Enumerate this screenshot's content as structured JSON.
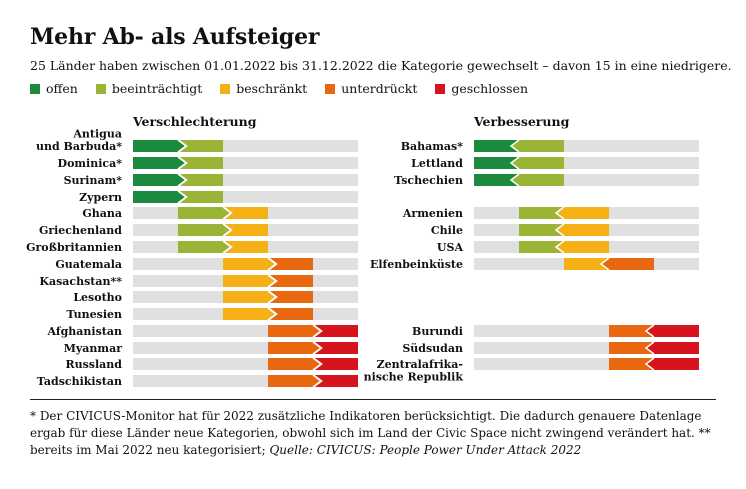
{
  "title": "Mehr Ab- als Aufsteiger",
  "subtitle": "25 Länder haben zwischen 01.01.2022 bis 31.12.2022 die Kategorie gewechselt – davon 15 in eine niedrigere.",
  "colors": {
    "offen": "#1b8a3c",
    "beeintraechtigt": "#9ab536",
    "beschraenkt": "#f5b015",
    "unterdrueckt": "#e8670f",
    "geschlossen": "#d7141e",
    "track": "#e0e0e0"
  },
  "legend": [
    {
      "label": "offen",
      "color": "#1b8a3c"
    },
    {
      "label": "beeinträchtigt",
      "color": "#9ab536"
    },
    {
      "label": "beschränkt",
      "color": "#f5b015"
    },
    {
      "label": "unterdrückt",
      "color": "#e8670f"
    },
    {
      "label": "geschlossen",
      "color": "#d7141e"
    }
  ],
  "chart_data": {
    "type": "table",
    "categories_scale": [
      "offen",
      "beeinträchtigt",
      "beschränkt",
      "unterdrückt",
      "geschlossen"
    ],
    "panels": [
      {
        "heading": "Verschlechterung",
        "direction": "worse",
        "rows": [
          {
            "country": "Antigua\nund Barbuda*",
            "from": "offen",
            "to": "beeinträchtigt"
          },
          {
            "country": "Dominica*",
            "from": "offen",
            "to": "beeinträchtigt"
          },
          {
            "country": "Surinam*",
            "from": "offen",
            "to": "beeinträchtigt"
          },
          {
            "country": "Zypern",
            "from": "offen",
            "to": "beeinträchtigt"
          },
          {
            "country": "Ghana",
            "from": "beeinträchtigt",
            "to": "beschränkt"
          },
          {
            "country": "Griechenland",
            "from": "beeinträchtigt",
            "to": "beschränkt"
          },
          {
            "country": "Großbritannien",
            "from": "beeinträchtigt",
            "to": "beschränkt"
          },
          {
            "country": "Guatemala",
            "from": "beschränkt",
            "to": "unterdrückt"
          },
          {
            "country": "Kasachstan**",
            "from": "beschränkt",
            "to": "unterdrückt"
          },
          {
            "country": "Lesotho",
            "from": "beschränkt",
            "to": "unterdrückt"
          },
          {
            "country": "Tunesien",
            "from": "beschränkt",
            "to": "unterdrückt"
          },
          {
            "country": "Afghanistan",
            "from": "unterdrückt",
            "to": "geschlossen"
          },
          {
            "country": "Myanmar",
            "from": "unterdrückt",
            "to": "geschlossen"
          },
          {
            "country": "Russland",
            "from": "unterdrückt",
            "to": "geschlossen"
          },
          {
            "country": "Tadschikistan",
            "from": "unterdrückt",
            "to": "geschlossen"
          }
        ]
      },
      {
        "heading": "Verbesserung",
        "direction": "better",
        "rows": [
          {
            "country": "Bahamas*",
            "from": "beeinträchtigt",
            "to": "offen"
          },
          {
            "country": "Lettland",
            "from": "beeinträchtigt",
            "to": "offen"
          },
          {
            "country": "Tschechien",
            "from": "beeinträchtigt",
            "to": "offen"
          },
          {
            "country": "Armenien",
            "from": "beschränkt",
            "to": "beeinträchtigt"
          },
          {
            "country": "Chile",
            "from": "beschränkt",
            "to": "beeinträchtigt"
          },
          {
            "country": "USA",
            "from": "beschränkt",
            "to": "beeinträchtigt"
          },
          {
            "country": "Elfenbeinküste",
            "from": "unterdrückt",
            "to": "beschränkt"
          },
          {
            "country": "Burundi",
            "from": "geschlossen",
            "to": "unterdrückt"
          },
          {
            "country": "Südsudan",
            "from": "geschlossen",
            "to": "unterdrückt"
          },
          {
            "country": "Zentralafrika-\nnische Republik",
            "from": "geschlossen",
            "to": "unterdrückt"
          }
        ]
      }
    ]
  },
  "footnote": {
    "text": "* Der CIVICUS-Monitor hat für 2022 zusätzliche Indikatoren berücksichtigt. Die dadurch genauere Datenlage ergab für diese Länder neue Kategorien, obwohl sich im Land der Civic Space nicht zwingend verändert hat. ** bereits im Mai 2022 neu kategorisiert; ",
    "source": "Quelle: CIVICUS: People Power Under Attack 2022"
  }
}
